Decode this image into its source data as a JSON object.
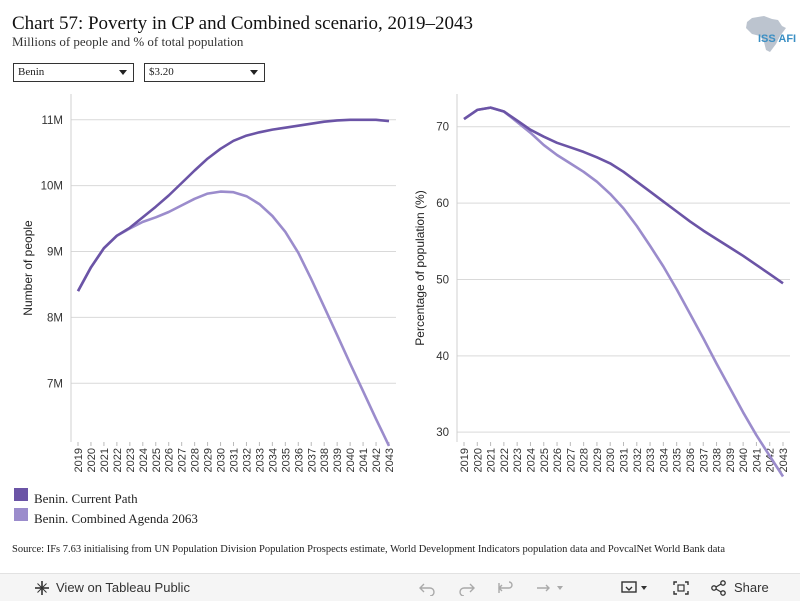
{
  "title": "Chart 57: Poverty in CP and Combined scenario, 2019–2043",
  "subtitle": "Millions of people and % of total population",
  "logo_text": "ISS AFI",
  "filters": {
    "country": "Benin",
    "poverty_line": "$3.20"
  },
  "colors": {
    "current_path": "#6b54a6",
    "combined": "#9b8ccc"
  },
  "chart_data": [
    {
      "type": "line",
      "ylabel": "Number of people",
      "x": [
        "2019",
        "2020",
        "2021",
        "2022",
        "2023",
        "2024",
        "2025",
        "2026",
        "2027",
        "2028",
        "2029",
        "2030",
        "2031",
        "2032",
        "2033",
        "2034",
        "2035",
        "2036",
        "2037",
        "2038",
        "2039",
        "2040",
        "2041",
        "2042",
        "2043"
      ],
      "ylim": [
        6.2,
        11.3
      ],
      "yticks": [
        7,
        8,
        9,
        10,
        11
      ],
      "ytick_labels": [
        "7M",
        "8M",
        "9M",
        "10M",
        "11M"
      ],
      "series": [
        {
          "name": "Benin. Current Path",
          "values": [
            8.4,
            8.76,
            9.05,
            9.24,
            9.36,
            9.52,
            9.68,
            9.85,
            10.04,
            10.23,
            10.41,
            10.56,
            10.68,
            10.76,
            10.81,
            10.85,
            10.88,
            10.91,
            10.94,
            10.97,
            10.99,
            11.0,
            11.0,
            11.0,
            10.98
          ]
        },
        {
          "name": "Benin. Combined Agenda 2063",
          "values": [
            8.4,
            8.76,
            9.05,
            9.24,
            9.35,
            9.45,
            9.52,
            9.6,
            9.7,
            9.8,
            9.88,
            9.91,
            9.9,
            9.84,
            9.72,
            9.54,
            9.3,
            8.98,
            8.58,
            8.16,
            7.73,
            7.3,
            6.88,
            6.46,
            6.05
          ]
        }
      ]
    },
    {
      "type": "line",
      "ylabel": "Percentage of population (%)",
      "x": [
        "2019",
        "2020",
        "2021",
        "2022",
        "2023",
        "2024",
        "2025",
        "2026",
        "2027",
        "2028",
        "2029",
        "2030",
        "2031",
        "2032",
        "2033",
        "2034",
        "2035",
        "2036",
        "2037",
        "2038",
        "2039",
        "2040",
        "2041",
        "2042",
        "2043"
      ],
      "ylim": [
        29.5,
        73.5
      ],
      "yticks": [
        30,
        40,
        50,
        60,
        70
      ],
      "ytick_labels": [
        "30",
        "40",
        "50",
        "60",
        "70"
      ],
      "series": [
        {
          "name": "Benin. Current Path",
          "values": [
            71.0,
            72.2,
            72.5,
            72.0,
            70.8,
            69.6,
            68.7,
            67.9,
            67.3,
            66.7,
            66.0,
            65.2,
            64.1,
            62.8,
            61.5,
            60.2,
            58.9,
            57.6,
            56.4,
            55.3,
            54.2,
            53.1,
            51.9,
            50.7,
            49.5
          ]
        },
        {
          "name": "Benin. Combined Agenda 2063",
          "values": [
            71.0,
            72.2,
            72.5,
            72.0,
            70.6,
            69.2,
            67.6,
            66.3,
            65.2,
            64.1,
            62.8,
            61.2,
            59.3,
            57.0,
            54.4,
            51.7,
            48.7,
            45.5,
            42.3,
            39.0,
            35.8,
            32.6,
            29.6,
            26.9,
            24.2
          ]
        }
      ]
    }
  ],
  "legend": [
    {
      "label": "Benin. Current Path"
    },
    {
      "label": "Benin. Combined Agenda 2063"
    }
  ],
  "source": "Source: IFs 7.63 initialising from UN Population Division Population Prospects estimate, World Development Indicators population data and PovcalNet World Bank data",
  "toolbar": {
    "view_label": "View on Tableau Public",
    "share_label": "Share"
  }
}
